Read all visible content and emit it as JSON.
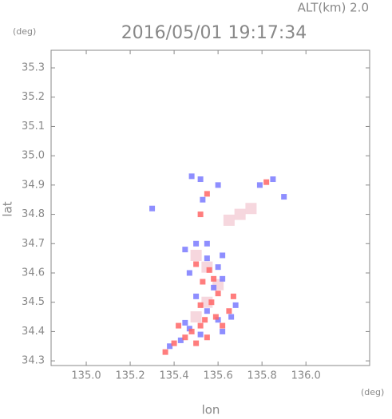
{
  "chart_data": {
    "type": "scatter",
    "title": "2016/05/01 19:17:34",
    "subtitle": "ALT(km) 2.0",
    "y_unit": "(deg)",
    "x_unit": "(deg)",
    "x_label": "lon",
    "y_label": "lat",
    "xlim": [
      134.84,
      136.29
    ],
    "ylim": [
      34.284,
      35.36
    ],
    "xticks": [
      {
        "value": 135.0,
        "label": "135.0"
      },
      135.2,
      135.4,
      135.6,
      135.8,
      {
        "value": 136.0,
        "label": "136.0"
      }
    ],
    "yticks": [
      34.3,
      34.4,
      34.5,
      34.6,
      34.7,
      34.8,
      34.9,
      {
        "value": 35.0,
        "label": "35.0"
      },
      35.1,
      35.2,
      35.3
    ],
    "series": [
      {
        "color": "#f4d0d8",
        "x": [
          135.7,
          135.75,
          135.65,
          135.55,
          135.6,
          135.5,
          135.55,
          135.5
        ],
        "y": [
          34.8,
          34.82,
          34.78,
          34.62,
          34.56,
          34.66,
          34.5,
          34.45
        ]
      },
      {
        "color": "#7a7aff",
        "x": [
          135.48,
          135.52,
          135.6,
          135.53,
          135.79,
          135.85,
          135.3,
          135.45,
          135.5,
          135.62,
          135.55,
          135.47,
          135.62,
          135.58,
          135.5,
          135.68,
          135.55,
          135.6,
          135.45,
          135.66,
          135.62,
          135.43,
          135.52,
          135.38,
          135.47,
          135.6,
          135.55,
          135.9
        ],
        "y": [
          34.93,
          34.92,
          34.9,
          34.85,
          34.9,
          34.92,
          34.82,
          34.68,
          34.7,
          34.66,
          34.65,
          34.6,
          34.58,
          34.55,
          34.52,
          34.49,
          34.47,
          34.44,
          34.43,
          34.45,
          34.4,
          34.37,
          34.39,
          34.35,
          34.41,
          34.62,
          34.7,
          34.86
        ]
      },
      {
        "color": "#ff6666",
        "x": [
          135.82,
          135.55,
          135.52,
          135.5,
          135.56,
          135.58,
          135.53,
          135.6,
          135.52,
          135.57,
          135.65,
          135.59,
          135.54,
          135.52,
          135.62,
          135.48,
          135.55,
          135.45,
          135.4,
          135.36,
          135.5,
          135.67,
          135.42
        ],
        "y": [
          34.91,
          34.87,
          34.8,
          34.63,
          34.61,
          34.58,
          34.57,
          34.53,
          34.49,
          34.5,
          34.47,
          34.45,
          34.44,
          34.42,
          34.42,
          34.4,
          34.38,
          34.38,
          34.36,
          34.33,
          34.36,
          34.52,
          34.42
        ]
      }
    ]
  }
}
